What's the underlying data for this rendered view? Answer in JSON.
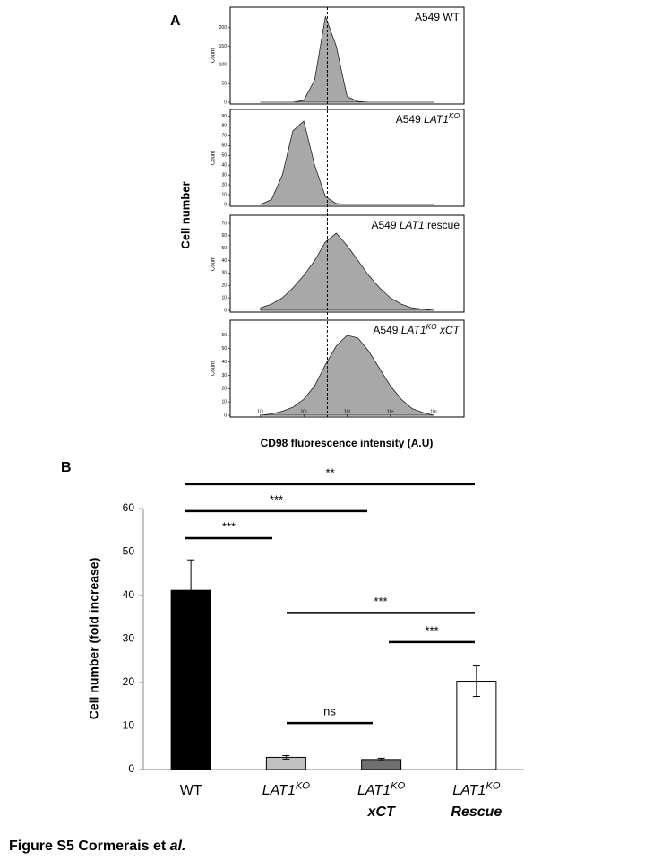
{
  "panel_a": {
    "label": "A",
    "y_label": "Cell number",
    "x_label": "CD98 fluorescence intensity (A.U)",
    "y_axis_label": "Count",
    "x_scale": "log",
    "xlim": [
      2,
      500000
    ],
    "xticks": [
      {
        "value": 10,
        "label": "10¹"
      },
      {
        "value": 100,
        "label": "10²"
      },
      {
        "value": 1000,
        "label": "10³"
      },
      {
        "value": 10000,
        "label": "10⁴"
      },
      {
        "value": 100000,
        "label": "10⁵"
      }
    ],
    "marker_x": 350,
    "color": "#a8a8a8",
    "x": [
      10,
      18,
      32,
      56,
      100,
      178,
      316,
      562,
      1000,
      1778,
      3162,
      5623,
      10000,
      17783,
      31623,
      56234,
      100000
    ],
    "histograms": [
      {
        "title": [
          {
            "text": "A549 WT",
            "style": ""
          }
        ],
        "ylim": [
          0,
          250
        ],
        "yticks": [
          0,
          50,
          100,
          150,
          200
        ],
        "counts": [
          0,
          0,
          0,
          0,
          5,
          60,
          230,
          150,
          15,
          2,
          0,
          0,
          0,
          0,
          0,
          0,
          0
        ]
      },
      {
        "title": [
          {
            "text": "A549 ",
            "style": ""
          },
          {
            "text": "LAT1",
            "style": "italic"
          },
          {
            "text": "KO",
            "style": "italic sup"
          }
        ],
        "ylim": [
          0,
          95
        ],
        "yticks": [
          0,
          10,
          20,
          30,
          40,
          50,
          60,
          70,
          80,
          90
        ],
        "counts": [
          0,
          5,
          30,
          75,
          85,
          40,
          8,
          1,
          0,
          0,
          0,
          0,
          0,
          0,
          0,
          0,
          0
        ]
      },
      {
        "title": [
          {
            "text": "A549 ",
            "style": ""
          },
          {
            "text": "LAT1",
            "style": "italic"
          },
          {
            "text": " rescue",
            "style": ""
          }
        ],
        "ylim": [
          0,
          75
        ],
        "yticks": [
          0,
          10,
          20,
          30,
          40,
          50,
          60,
          70
        ],
        "counts": [
          2,
          5,
          10,
          18,
          28,
          40,
          55,
          62,
          52,
          40,
          28,
          18,
          10,
          5,
          2,
          1,
          0
        ]
      },
      {
        "title": [
          {
            "text": "A549 ",
            "style": ""
          },
          {
            "text": "LAT1",
            "style": "italic"
          },
          {
            "text": "KO",
            "style": "italic sup"
          },
          {
            "text": " xCT",
            "style": "italic"
          }
        ],
        "ylim": [
          0,
          70
        ],
        "yticks": [
          0,
          10,
          20,
          30,
          40,
          50,
          60
        ],
        "counts": [
          0,
          1,
          3,
          6,
          12,
          22,
          38,
          52,
          60,
          58,
          48,
          35,
          22,
          12,
          5,
          2,
          0
        ]
      }
    ]
  },
  "chart_data": {
    "type": "bar",
    "panel_label": "B",
    "y_label": "Cell number (fold increase)",
    "categories": [
      [
        [
          {
            "text": "WT",
            "style": ""
          }
        ]
      ],
      [
        [
          {
            "text": "LAT1",
            "style": "italic"
          },
          {
            "text": "KO",
            "style": "italic sup"
          }
        ]
      ],
      [
        [
          {
            "text": "LAT1",
            "style": "italic"
          },
          {
            "text": "KO",
            "style": "italic sup"
          }
        ],
        [
          {
            "text": "xCT",
            "style": "italic bold"
          }
        ]
      ],
      [
        [
          {
            "text": "LAT1",
            "style": "italic"
          },
          {
            "text": "KO",
            "style": "italic sup"
          }
        ],
        [
          {
            "text": "Rescue",
            "style": "italic bold"
          }
        ]
      ]
    ],
    "values": [
      41.2,
      2.8,
      2.3,
      20.3
    ],
    "errors": [
      7,
      0.4,
      0.3,
      3.5
    ],
    "colors": [
      "#000000",
      "#c0c0c0",
      "#707070",
      "#ffffff"
    ],
    "ylim": [
      0,
      60
    ],
    "yticks": [
      0,
      10,
      20,
      30,
      40,
      50,
      60
    ],
    "brackets": [
      {
        "label": "***",
        "y": 53.2
      },
      {
        "label": "***",
        "y": 59.4
      },
      {
        "label": "**",
        "y": 65.6
      },
      {
        "label": "***",
        "y": 36
      },
      {
        "label": "***",
        "y": 29.3
      },
      {
        "label": "ns",
        "y": 10.7
      }
    ]
  },
  "caption": [
    {
      "text": "Figure S5 Cormerais et ",
      "style": "bold"
    },
    {
      "text": "al.",
      "style": "bold italic"
    }
  ]
}
